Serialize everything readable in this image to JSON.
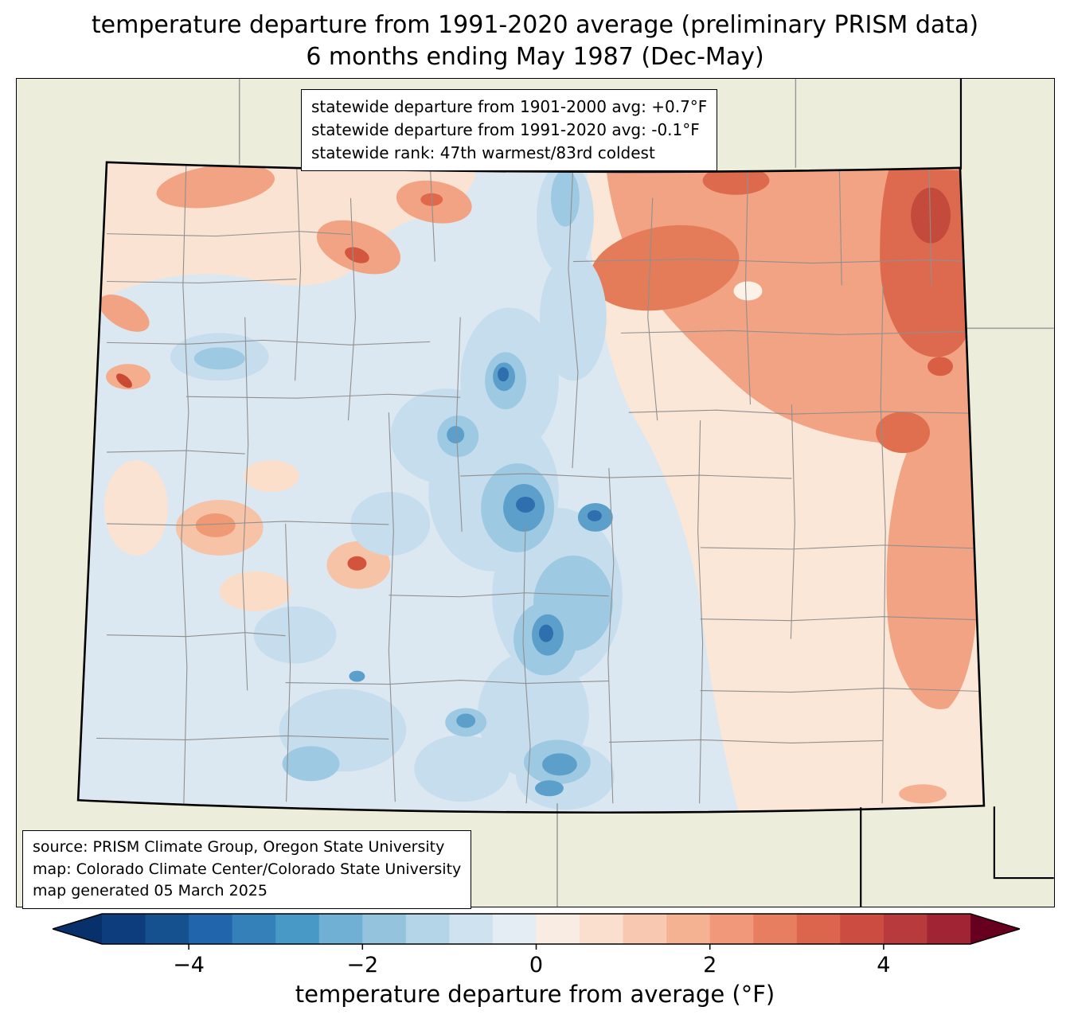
{
  "title": {
    "line1": "temperature departure from 1991-2020 average (preliminary PRISM data)",
    "line2": "6 months ending May 1987 (Dec-May)"
  },
  "stats_box": {
    "line1": "statewide departure from 1901-2000 avg: +0.7°F",
    "line2": "statewide departure from 1991-2020 avg: -0.1°F",
    "line3": "statewide rank: 47th warmest/83rd coldest"
  },
  "source_box": {
    "line1": "source: PRISM Climate Group, Oregon State University",
    "line2": "map: Colorado Climate Center/Colorado State University",
    "line3": "map generated 05 March 2025"
  },
  "colorbar": {
    "label": "temperature departure from average (°F)",
    "range_min": -5,
    "range_max": 5,
    "tick_values": [
      -4,
      -2,
      0,
      2,
      4
    ],
    "tick_labels": [
      "−4",
      "−2",
      "0",
      "2",
      "4"
    ],
    "arrow_low_color": "#08306b",
    "arrow_high_color": "#67001f",
    "segment_colors": [
      "#0d3d7c",
      "#16518f",
      "#2166ac",
      "#3480b9",
      "#4999c7",
      "#6fb0d4",
      "#94c4dd",
      "#b4d5e7",
      "#cfe2ef",
      "#e4edf4",
      "#f9ece2",
      "#fadfce",
      "#f8c9b0",
      "#f5b293",
      "#f09879",
      "#e87e60",
      "#dc654e",
      "#cc4c42",
      "#b93a3c",
      "#a02433"
    ]
  },
  "map": {
    "region": "Colorado",
    "background_color": "#ededdb",
    "state_border_color": "#000000",
    "county_border_color": "#8f8f8f",
    "base_fill": "#dce8f1"
  }
}
